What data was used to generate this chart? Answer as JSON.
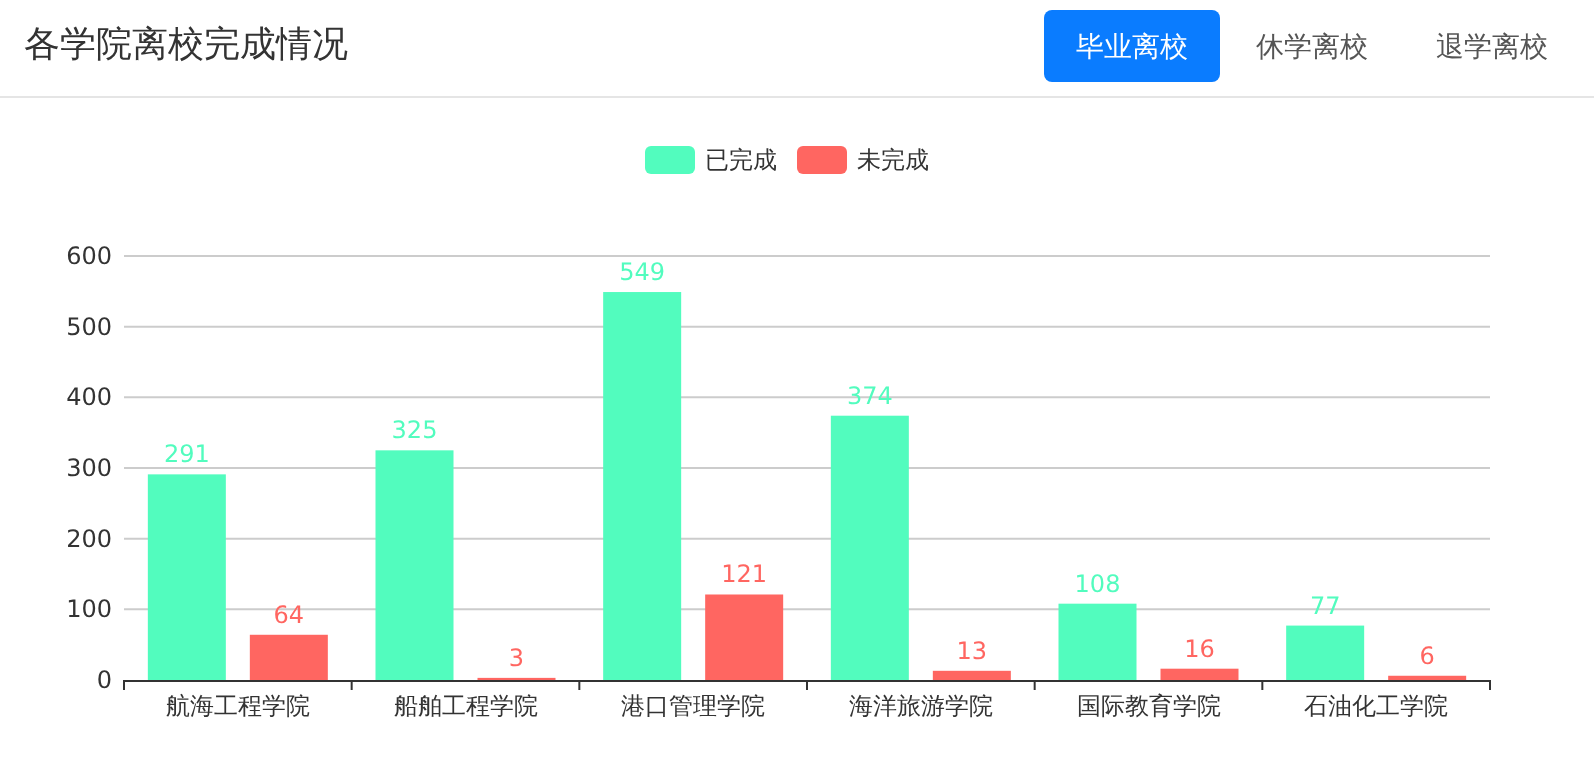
{
  "chart_data": {
    "type": "bar",
    "title": "各学院离校完成情况",
    "annotations": [
      "毕业离校",
      "休学离校",
      "退学离校"
    ],
    "categories": [
      "航海工程学院",
      "船舶工程学院",
      "港口管理学院",
      "海洋旅游学院",
      "国际教育学院",
      "石油化工学院"
    ],
    "series": [
      {
        "name": "已完成",
        "color": "#52fcbe",
        "values": [
          291,
          325,
          549,
          374,
          108,
          77
        ]
      },
      {
        "name": "未完成",
        "color": "#ff6661",
        "values": [
          64,
          3,
          121,
          13,
          16,
          6
        ]
      }
    ],
    "ylim": [
      0,
      600
    ],
    "yticks": [
      0,
      100,
      200,
      300,
      400,
      500,
      600
    ],
    "grid": "y",
    "legend": "top",
    "data_labels": true
  }
}
